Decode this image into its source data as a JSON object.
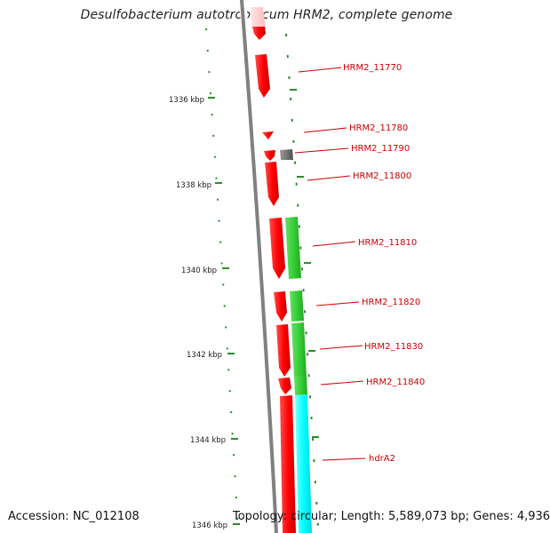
{
  "title": "Desulfobacterium autotrophicum HRM2, complete genome",
  "footer": {
    "accession": "Accession: NC_012108",
    "topology": "Topology: circular; Length: 5,589,073 bp; Genes: 4,936"
  },
  "colors": {
    "backbone": "#808080",
    "cds_forward": "#ff0000",
    "gene_green": "#33cc33",
    "gene_cyan": "#00ffff",
    "gene_gray": "#707070",
    "tick": "#2e8b2e",
    "label": "#cc0000"
  },
  "ticks": [
    {
      "label": "1336 kbp"
    },
    {
      "label": "1338 kbp"
    },
    {
      "label": "1340 kbp"
    },
    {
      "label": "1342 kbp"
    },
    {
      "label": "1344 kbp"
    },
    {
      "label": "1346 kbp"
    }
  ],
  "genes": [
    {
      "label": "HRM2_11770"
    },
    {
      "label": "HRM2_11780"
    },
    {
      "label": "HRM2_11790"
    },
    {
      "label": "HRM2_11800"
    },
    {
      "label": "HRM2_11810"
    },
    {
      "label": "HRM2_11820"
    },
    {
      "label": "HRM2_11830"
    },
    {
      "label": "HRM2_11840"
    },
    {
      "label": "hdrA2"
    }
  ]
}
